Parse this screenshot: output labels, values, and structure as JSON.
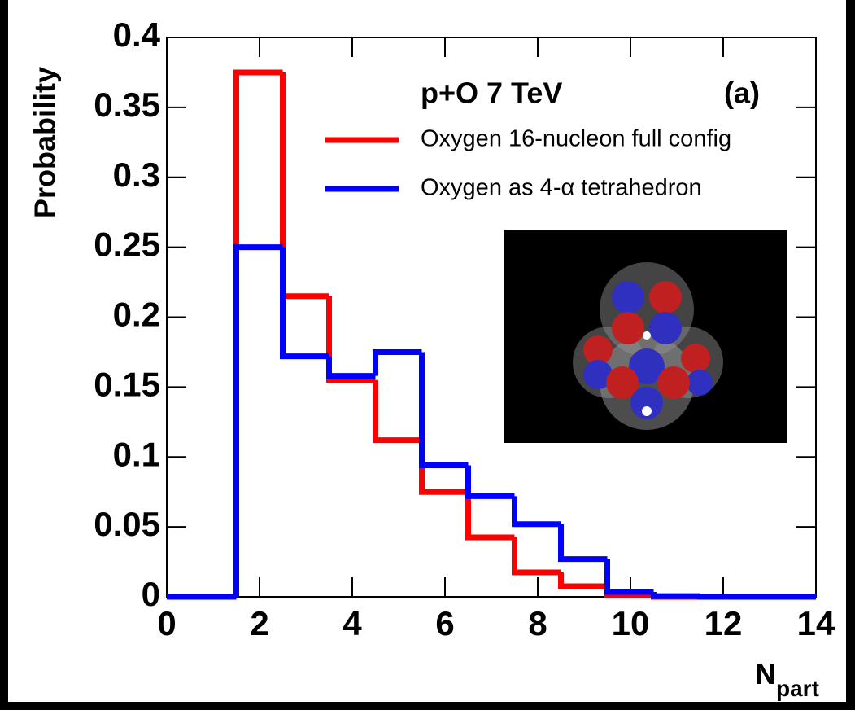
{
  "chart_data": {
    "type": "histogram",
    "annotations": [
      "p+O 7 TeV",
      "(a)"
    ],
    "x_label": "N",
    "x_label_subscript": "part",
    "y_label": "Probability",
    "bins": [
      0,
      0.5,
      1.5,
      2.5,
      3.5,
      4.5,
      5.5,
      6.5,
      7.5,
      8.5,
      9.5,
      10.5,
      11.5,
      12.5,
      13.5,
      14
    ],
    "series": [
      {
        "name": "Oxygen 16-nucleon full config",
        "color": "#ff0000",
        "values": [
          0,
          0,
          0.375,
          0.215,
          0.155,
          0.112,
          0.075,
          0.0425,
          0.0175,
          0.0076,
          0.001,
          0,
          0,
          0,
          0
        ]
      },
      {
        "name": "Oxygen as 4-α tetrahedron",
        "color": "#0000ff",
        "values": [
          0,
          0,
          0.25,
          0.172,
          0.158,
          0.175,
          0.094,
          0.072,
          0.052,
          0.027,
          0.0035,
          0.0005,
          0,
          0,
          0
        ]
      }
    ],
    "xlim": [
      0,
      14
    ],
    "xticks": [
      0,
      2,
      4,
      6,
      8,
      10,
      12,
      14
    ],
    "ylim": [
      0,
      0.4
    ],
    "yticks": [
      0,
      0.05,
      0.1,
      0.15,
      0.2,
      0.25,
      0.3,
      0.35,
      0.4
    ]
  }
}
